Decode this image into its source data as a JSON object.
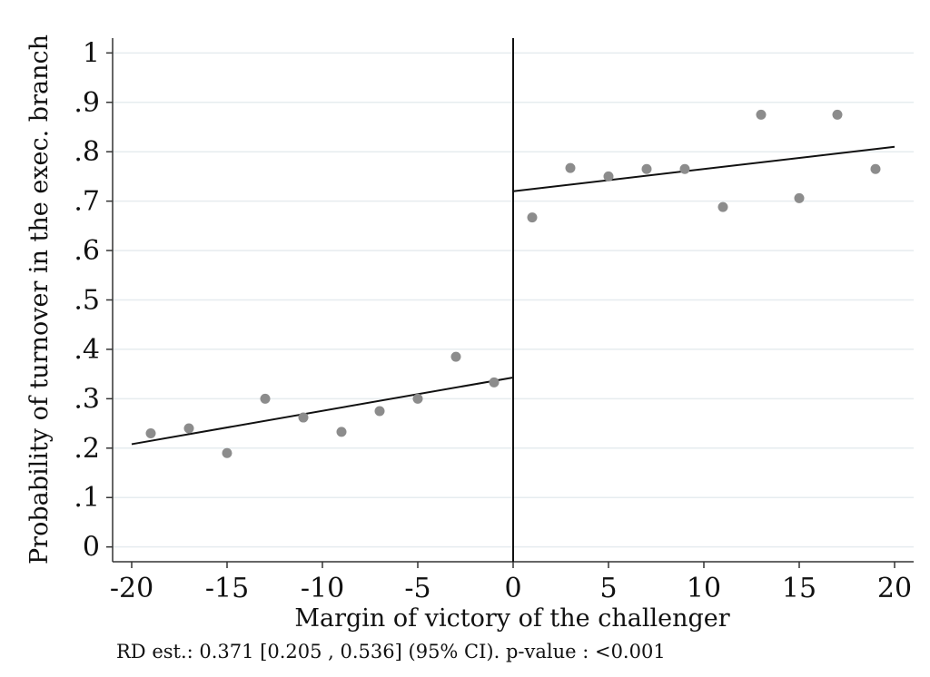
{
  "chart_data": {
    "type": "scatter",
    "xlabel": "Margin of victory of the challenger",
    "ylabel": "Probability of turnover in the exec. branch",
    "xlim": [
      -21,
      21
    ],
    "ylim": [
      -0.03,
      1.03
    ],
    "xticks": [
      -20,
      -15,
      -10,
      -5,
      0,
      5,
      10,
      15,
      20
    ],
    "xtick_labels": [
      "-20",
      "-15",
      "-10",
      "-5",
      "0",
      "5",
      "10",
      "15",
      "20"
    ],
    "yticks": [
      0,
      0.1,
      0.2,
      0.3,
      0.4,
      0.5,
      0.6,
      0.7,
      0.8,
      0.9,
      1
    ],
    "ytick_labels": [
      "0",
      ".1",
      ".2",
      ".3",
      ".4",
      ".5",
      ".6",
      ".7",
      ".8",
      ".9",
      "1"
    ],
    "grid": true,
    "cutoff": 0,
    "points": [
      {
        "x": -19,
        "y": 0.23
      },
      {
        "x": -17,
        "y": 0.24
      },
      {
        "x": -15,
        "y": 0.19
      },
      {
        "x": -13,
        "y": 0.3
      },
      {
        "x": -11,
        "y": 0.262
      },
      {
        "x": -9,
        "y": 0.233
      },
      {
        "x": -7,
        "y": 0.275
      },
      {
        "x": -5,
        "y": 0.3
      },
      {
        "x": -3,
        "y": 0.385
      },
      {
        "x": -1,
        "y": 0.333
      },
      {
        "x": 1,
        "y": 0.667
      },
      {
        "x": 3,
        "y": 0.767
      },
      {
        "x": 5,
        "y": 0.75
      },
      {
        "x": 7,
        "y": 0.765
      },
      {
        "x": 9,
        "y": 0.765
      },
      {
        "x": 11,
        "y": 0.688
      },
      {
        "x": 13,
        "y": 0.875
      },
      {
        "x": 15,
        "y": 0.706
      },
      {
        "x": 17,
        "y": 0.875
      },
      {
        "x": 19,
        "y": 0.765
      }
    ],
    "fit_lines": [
      {
        "side": "left",
        "x": [
          -20,
          0
        ],
        "y": [
          0.208,
          0.343
        ]
      },
      {
        "side": "right",
        "x": [
          0,
          20
        ],
        "y": [
          0.72,
          0.81
        ]
      }
    ]
  },
  "note": "RD est.: 0.371 [0.205 , 0.536] (95% CI). p-value : <0.001",
  "colors": {
    "points": "#8c8c8c",
    "lines": "#111111",
    "grid": "#e6ecef",
    "axis": "#333333"
  }
}
